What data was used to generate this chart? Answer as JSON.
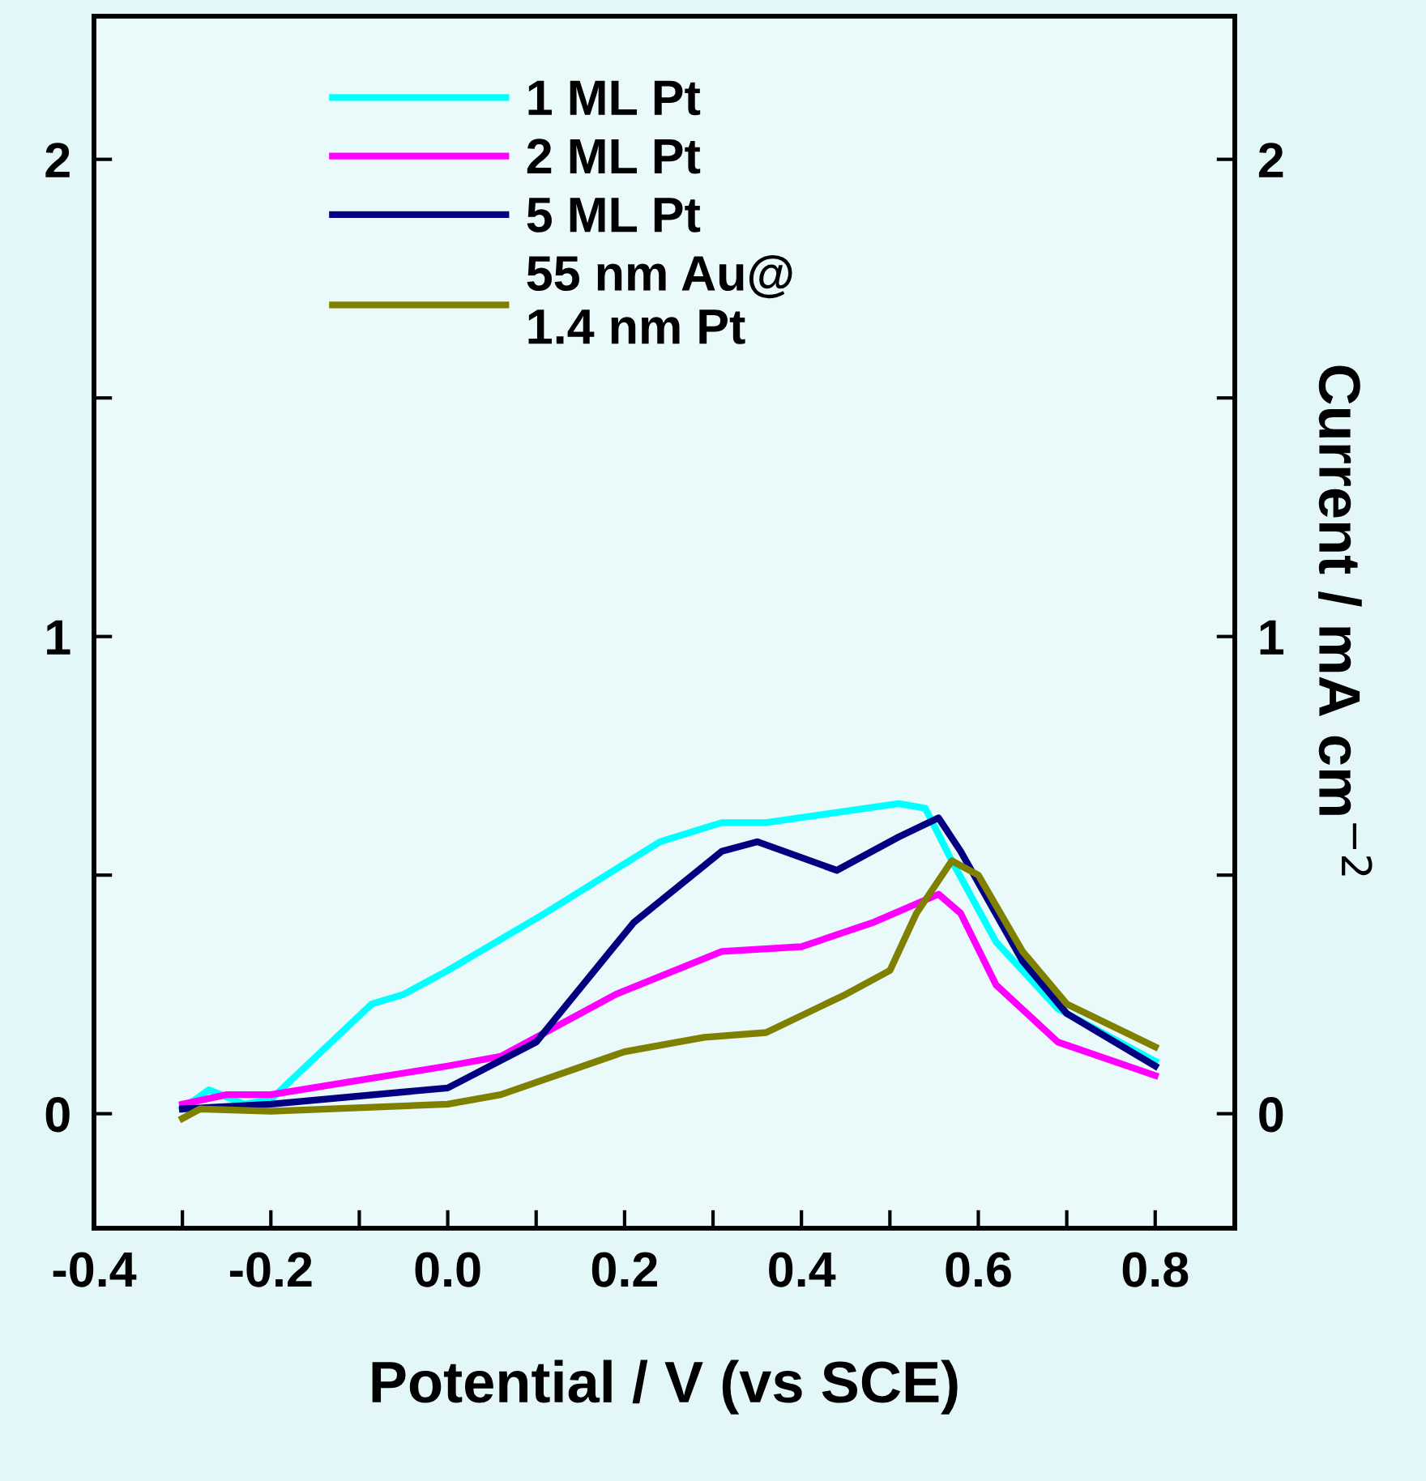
{
  "chart_data": {
    "type": "line",
    "xlabel": "Potential / V (vs SCE)",
    "y2label": "Current / mA cm$^{−2}$",
    "xlim": [
      -0.4,
      0.89
    ],
    "ylim": [
      -0.24,
      2.3
    ],
    "y2lim": [
      -0.24,
      2.3
    ],
    "xticks": [
      {
        "value": -0.4,
        "label": "-0.4"
      },
      {
        "value": -0.3,
        "label": null
      },
      {
        "value": -0.2,
        "label": "-0.2"
      },
      {
        "value": -0.1,
        "label": null
      },
      {
        "value": 0.0,
        "label": "0.0"
      },
      {
        "value": 0.1,
        "label": null
      },
      {
        "value": 0.2,
        "label": "0.2"
      },
      {
        "value": 0.3,
        "label": null
      },
      {
        "value": 0.4,
        "label": "0.4"
      },
      {
        "value": 0.5,
        "label": null
      },
      {
        "value": 0.6,
        "label": "0.6"
      },
      {
        "value": 0.7,
        "label": null
      },
      {
        "value": 0.8,
        "label": "0.8"
      }
    ],
    "yticks": [
      0,
      {
        "value": 0.5,
        "label": null
      },
      1,
      {
        "value": 1.5,
        "label": null
      },
      2
    ],
    "y2ticks": [
      0,
      {
        "value": 0.5,
        "label": null
      },
      1,
      {
        "value": 1.5,
        "label": null
      },
      2
    ],
    "grid": false,
    "legend": "top left",
    "marker": "none",
    "line_style": "solid",
    "series": [
      {
        "name": "1 ML Pt",
        "color": "#00ffff",
        "x": [
          -0.3,
          -0.27,
          -0.23,
          -0.2,
          -0.086,
          -0.05,
          0.0,
          0.11,
          0.24,
          0.31,
          0.36,
          0.51,
          0.54,
          0.57,
          0.62,
          0.69,
          0.8
        ],
        "values": [
          0.01,
          0.05,
          0.02,
          0.03,
          0.23,
          0.25,
          0.3,
          0.42,
          0.57,
          0.61,
          0.61,
          0.65,
          0.64,
          0.53,
          0.36,
          0.22,
          0.11
        ]
      },
      {
        "name": "2 ML Pt",
        "color": "#ff00ff",
        "x": [
          -0.3,
          -0.25,
          -0.2,
          -0.1,
          0.0,
          0.06,
          0.19,
          0.31,
          0.4,
          0.48,
          0.555,
          0.58,
          0.62,
          0.69,
          0.8
        ],
        "values": [
          0.02,
          0.04,
          0.04,
          0.07,
          0.1,
          0.12,
          0.25,
          0.34,
          0.35,
          0.4,
          0.46,
          0.42,
          0.27,
          0.15,
          0.08
        ]
      },
      {
        "name": "5 ML Pt",
        "color": "#000080",
        "x": [
          -0.3,
          -0.2,
          0.0,
          0.1,
          0.21,
          0.31,
          0.35,
          0.44,
          0.51,
          0.555,
          0.58,
          0.65,
          0.7,
          0.8
        ],
        "values": [
          0.01,
          0.02,
          0.054,
          0.15,
          0.4,
          0.55,
          0.57,
          0.51,
          0.58,
          0.62,
          0.55,
          0.32,
          0.21,
          0.1
        ]
      },
      {
        "name": "55 nm Au@\n1.4 nm Pt",
        "color": "#808000",
        "x": [
          -0.3,
          -0.28,
          -0.2,
          0.0,
          0.06,
          0.2,
          0.29,
          0.36,
          0.45,
          0.5,
          0.53,
          0.57,
          0.6,
          0.65,
          0.7,
          0.8
        ],
        "values": [
          -0.01,
          0.01,
          0.005,
          0.02,
          0.04,
          0.13,
          0.16,
          0.17,
          0.25,
          0.3,
          0.42,
          0.53,
          0.5,
          0.34,
          0.23,
          0.14
        ]
      }
    ]
  }
}
